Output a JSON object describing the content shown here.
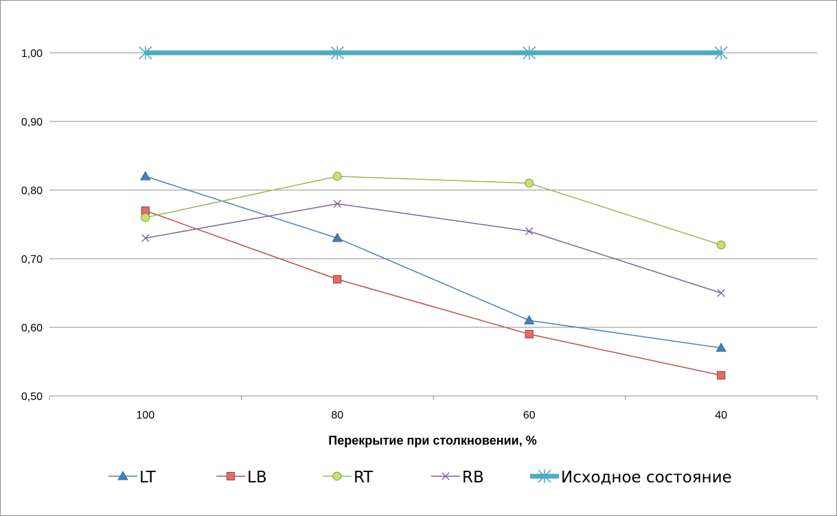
{
  "chart_data": {
    "type": "line",
    "title": "",
    "xlabel": "Перекрытие при столкновении, %",
    "ylabel": "",
    "categories": [
      "100",
      "80",
      "60",
      "40"
    ],
    "yticks": [
      "0,50",
      "0,60",
      "0,70",
      "0,80",
      "0,90",
      "1,00"
    ],
    "ylim": [
      0.5,
      1.05
    ],
    "grid": true,
    "legend_position": "bottom",
    "series": [
      {
        "name": "LT",
        "values": [
          0.82,
          0.73,
          0.61,
          0.57
        ],
        "color": "#4a7ebb",
        "marker": "triangle"
      },
      {
        "name": "LB",
        "values": [
          0.77,
          0.67,
          0.59,
          0.53
        ],
        "color": "#be4b48",
        "marker": "square"
      },
      {
        "name": "RT",
        "values": [
          0.76,
          0.82,
          0.81,
          0.72
        ],
        "color": "#98b954",
        "marker": "circle"
      },
      {
        "name": "RB",
        "values": [
          0.73,
          0.78,
          0.74,
          0.65
        ],
        "color": "#7d60a0",
        "marker": "x"
      },
      {
        "name": "Исходное состояние",
        "values": [
          1.0,
          1.0,
          1.0,
          1.0
        ],
        "color": "#4bacc6",
        "marker": "asterisk"
      }
    ]
  }
}
